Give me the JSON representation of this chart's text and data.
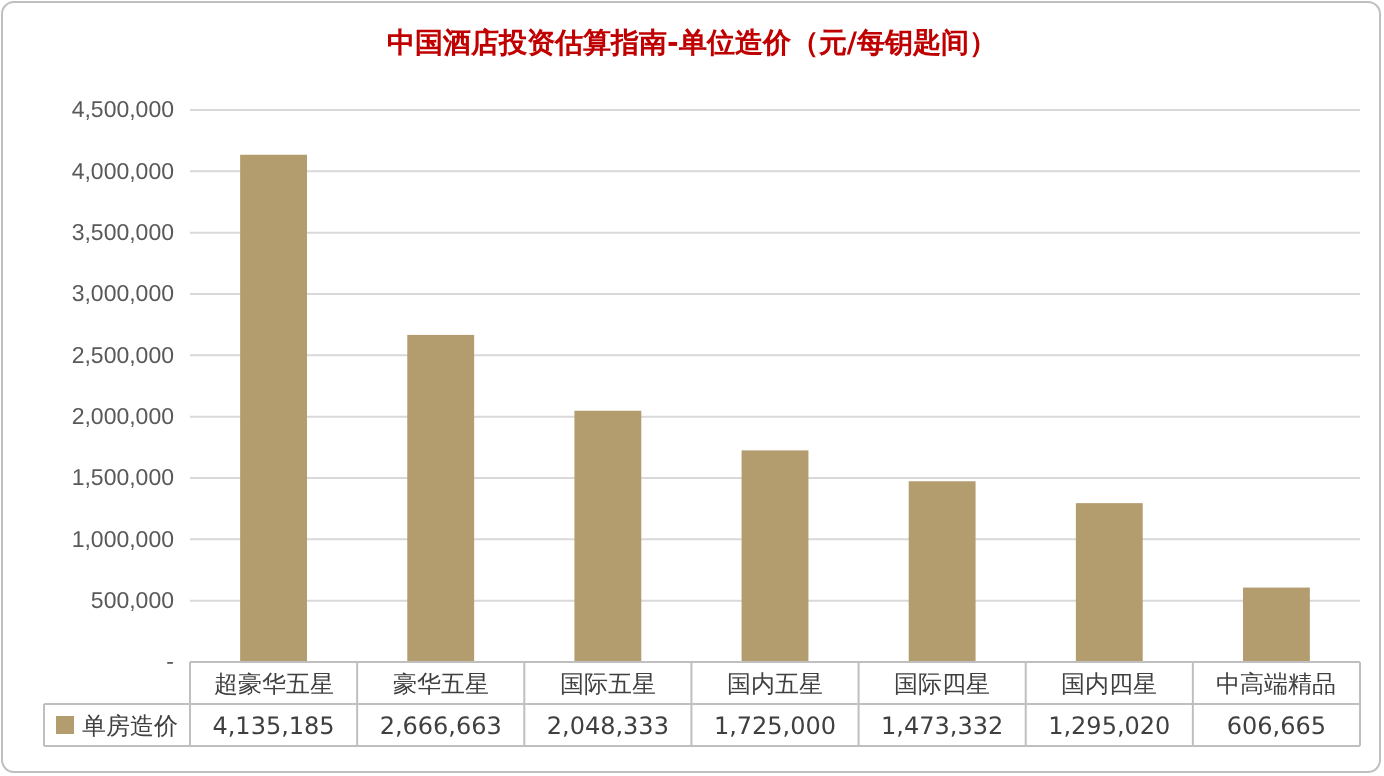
{
  "chart_data": {
    "type": "bar",
    "title": "中国酒店投资估算指南-单位造价（元/每钥匙间）",
    "categories": [
      "超豪华五星",
      "豪华五星",
      "国际五星",
      "国内五星",
      "国际四星",
      "国内四星",
      "中高端精品"
    ],
    "series": [
      {
        "name": "单房造价",
        "color": "#b39c6e",
        "values": [
          4135185,
          2666663,
          2048333,
          1725000,
          1473332,
          1295020,
          606665
        ],
        "value_labels": [
          "4,135,185",
          "2,666,663",
          "2,048,333",
          "1,725,000",
          "1,473,332",
          "1,295,020",
          "606,665"
        ]
      }
    ],
    "ylim": [
      0,
      4500000
    ],
    "yticks": [
      {
        "value": 0,
        "label": "-"
      },
      {
        "value": 500000,
        "label": "500,000"
      },
      {
        "value": 1000000,
        "label": "1,000,000"
      },
      {
        "value": 1500000,
        "label": "1,500,000"
      },
      {
        "value": 2000000,
        "label": "2,000,000"
      },
      {
        "value": 2500000,
        "label": "2,500,000"
      },
      {
        "value": 3000000,
        "label": "3,000,000"
      },
      {
        "value": 3500000,
        "label": "3,500,000"
      },
      {
        "value": 4000000,
        "label": "4,000,000"
      },
      {
        "value": 4500000,
        "label": "4,500,000"
      }
    ],
    "grid": "y",
    "legend": "bottom"
  }
}
